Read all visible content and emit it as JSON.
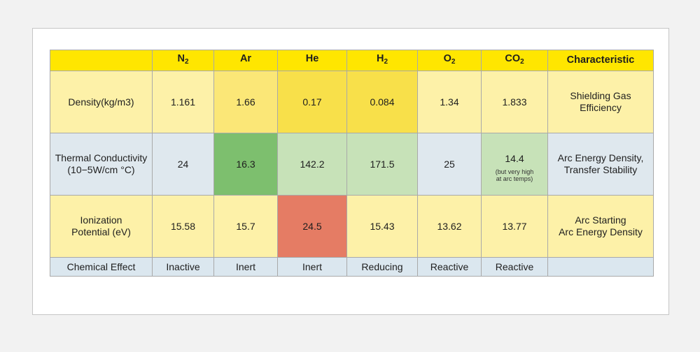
{
  "header": {
    "label_col": "",
    "cols": [
      {
        "main": "N",
        "sub": "2"
      },
      {
        "main": "Ar",
        "sub": ""
      },
      {
        "main": "He",
        "sub": ""
      },
      {
        "main": "H",
        "sub": "2"
      },
      {
        "main": "O",
        "sub": "2"
      },
      {
        "main": "CO",
        "sub": "2"
      }
    ],
    "characteristic": "Characteristic"
  },
  "rows": {
    "density": {
      "label": "Density(kg/m3)",
      "values": [
        "1.161",
        "1.66",
        "0.17",
        "0.084",
        "1.34",
        "1.833"
      ],
      "characteristic": [
        "Shielding Gas",
        "Efficiency"
      ]
    },
    "thermal": {
      "label": [
        "Thermal Conductivity",
        "(10−5W/cm °C)"
      ],
      "values": [
        "24",
        "16.3",
        "142.2",
        "171.5",
        "25",
        "14.4"
      ],
      "co2_note": [
        "(but very high",
        "at arc temps)"
      ],
      "characteristic": [
        "Arc Energy Density,",
        "Transfer Stability"
      ]
    },
    "ionization": {
      "label": [
        "Ionization",
        "Potential (eV)"
      ],
      "values": [
        "15.58",
        "15.7",
        "24.5",
        "15.43",
        "13.62",
        "13.77"
      ],
      "characteristic": [
        "Arc Starting",
        "Arc Energy Density"
      ]
    },
    "chemical": {
      "label": "Chemical Effect",
      "values": [
        "Inactive",
        "Inert",
        "Inert",
        "Reducing",
        "Reactive",
        "Reactive"
      ],
      "characteristic": ""
    }
  },
  "colors": {
    "header": "#ffe600",
    "pale_yellow": "#fdf1a8",
    "yellow": "#f8e04a",
    "blue_gray": "#dfe8ee",
    "green": "#7dbf6e",
    "light_green": "#c7e2b8",
    "red": "#e57c64"
  }
}
